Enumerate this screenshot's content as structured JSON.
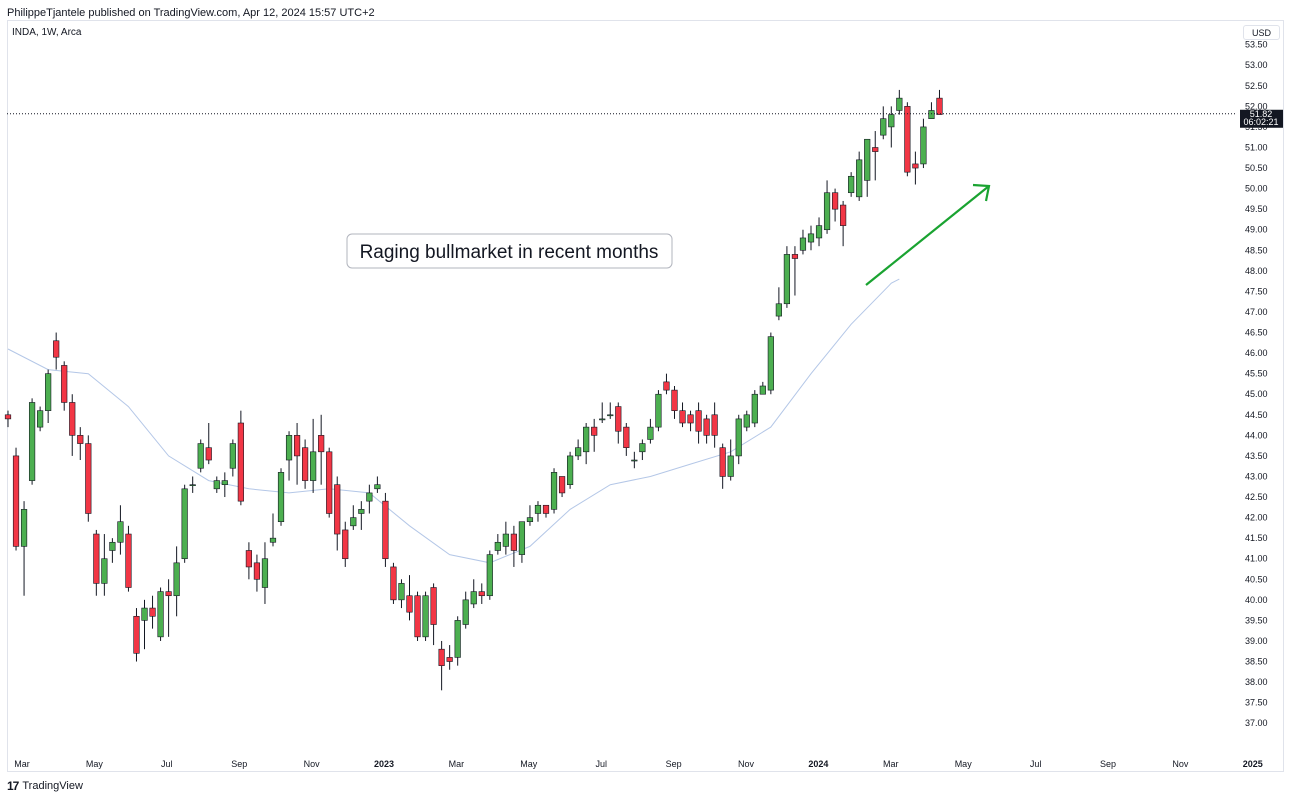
{
  "header": {
    "published_by": "PhilippeTjantele published on TradingView.com, Apr 12, 2024 15:57 UTC+2",
    "symbol": "INDA, 1W, Arca",
    "currency": "USD"
  },
  "footer": {
    "brand": "TradingView",
    "logo_glyph": "17"
  },
  "chart_data": {
    "type": "candlestick",
    "symbol": "INDA",
    "interval": "1W",
    "exchange": "Arca",
    "y_ticks": [
      "37.00",
      "37.50",
      "38.00",
      "38.50",
      "39.00",
      "39.50",
      "40.00",
      "40.50",
      "41.00",
      "41.50",
      "42.00",
      "42.50",
      "43.00",
      "43.50",
      "44.00",
      "44.50",
      "45.00",
      "45.50",
      "46.00",
      "46.50",
      "47.00",
      "47.50",
      "48.00",
      "48.50",
      "49.00",
      "49.50",
      "50.00",
      "50.50",
      "51.00",
      "51.50",
      "52.00",
      "52.50",
      "53.00",
      "53.50"
    ],
    "ylim": [
      36.3,
      54.1
    ],
    "x_ticks": [
      {
        "label": "Mar",
        "bold": false
      },
      {
        "label": "May",
        "bold": false
      },
      {
        "label": "Jul",
        "bold": false
      },
      {
        "label": "Sep",
        "bold": false
      },
      {
        "label": "Nov",
        "bold": false
      },
      {
        "label": "2023",
        "bold": true
      },
      {
        "label": "Mar",
        "bold": false
      },
      {
        "label": "May",
        "bold": false
      },
      {
        "label": "Jul",
        "bold": false
      },
      {
        "label": "Sep",
        "bold": false
      },
      {
        "label": "Nov",
        "bold": false
      },
      {
        "label": "2024",
        "bold": true
      },
      {
        "label": "Mar",
        "bold": false
      },
      {
        "label": "May",
        "bold": false
      },
      {
        "label": "Jul",
        "bold": false
      },
      {
        "label": "Sep",
        "bold": false
      },
      {
        "label": "Nov",
        "bold": false
      },
      {
        "label": "2025",
        "bold": true
      }
    ],
    "last_price": {
      "value": "51.82",
      "countdown": "06:02:21"
    },
    "candles": [
      [
        44.5,
        44.4,
        44.6,
        44.2
      ],
      [
        43.5,
        41.3,
        43.7,
        41.2
      ],
      [
        41.3,
        42.2,
        42.4,
        40.1
      ],
      [
        42.9,
        44.8,
        44.9,
        42.8
      ],
      [
        44.2,
        44.6,
        44.7,
        44.1
      ],
      [
        44.6,
        45.5,
        45.6,
        44.3
      ],
      [
        46.3,
        45.9,
        46.5,
        45.6
      ],
      [
        45.7,
        44.8,
        45.8,
        44.6
      ],
      [
        44.8,
        44.0,
        45.0,
        43.5
      ],
      [
        44.0,
        43.8,
        44.2,
        43.4
      ],
      [
        43.8,
        42.1,
        44.0,
        41.9
      ],
      [
        41.6,
        40.4,
        41.7,
        40.1
      ],
      [
        40.4,
        41.0,
        41.6,
        40.1
      ],
      [
        41.2,
        41.4,
        41.5,
        40.9
      ],
      [
        41.4,
        41.9,
        42.3,
        41.1
      ],
      [
        41.6,
        40.3,
        41.8,
        40.2
      ],
      [
        39.6,
        38.7,
        39.8,
        38.5
      ],
      [
        39.5,
        39.8,
        40.0,
        38.8
      ],
      [
        39.8,
        39.6,
        40.1,
        39.3
      ],
      [
        39.1,
        40.2,
        40.3,
        39.0
      ],
      [
        40.2,
        40.1,
        40.5,
        39.1
      ],
      [
        40.1,
        40.9,
        41.3,
        39.6
      ],
      [
        41.0,
        42.7,
        42.8,
        40.9
      ],
      [
        42.8,
        42.8,
        43.0,
        42.6
      ],
      [
        43.2,
        43.8,
        43.9,
        43.1
      ],
      [
        43.7,
        43.4,
        44.3,
        43.3
      ],
      [
        42.7,
        42.9,
        43.0,
        42.6
      ],
      [
        42.8,
        42.9,
        43.1,
        42.5
      ],
      [
        43.2,
        43.8,
        43.9,
        43.0
      ],
      [
        44.3,
        42.4,
        44.6,
        42.3
      ],
      [
        41.2,
        40.8,
        41.4,
        40.5
      ],
      [
        40.9,
        40.5,
        41.1,
        40.2
      ],
      [
        40.3,
        41.0,
        41.4,
        39.9
      ],
      [
        41.4,
        41.5,
        42.1,
        41.3
      ],
      [
        41.9,
        43.1,
        43.2,
        41.8
      ],
      [
        43.4,
        44.0,
        44.1,
        42.9
      ],
      [
        44.0,
        43.5,
        44.3,
        42.8
      ],
      [
        43.7,
        42.9,
        43.9,
        42.7
      ],
      [
        42.9,
        43.6,
        44.4,
        42.6
      ],
      [
        44.0,
        43.6,
        44.5,
        42.8
      ],
      [
        43.6,
        42.1,
        43.7,
        42.0
      ],
      [
        42.8,
        41.6,
        43.0,
        41.2
      ],
      [
        41.7,
        41.0,
        41.9,
        40.8
      ],
      [
        41.8,
        42.0,
        42.3,
        41.7
      ],
      [
        42.1,
        42.2,
        42.4,
        41.7
      ],
      [
        42.4,
        42.6,
        42.8,
        42.1
      ],
      [
        42.7,
        42.8,
        43.0,
        42.6
      ],
      [
        42.4,
        41.0,
        42.6,
        40.8
      ],
      [
        40.8,
        40.0,
        40.9,
        39.9
      ],
      [
        40.0,
        40.4,
        40.5,
        39.8
      ],
      [
        40.1,
        39.7,
        40.6,
        39.5
      ],
      [
        40.1,
        39.1,
        40.2,
        39.0
      ],
      [
        39.1,
        40.1,
        40.2,
        39.0
      ],
      [
        40.3,
        39.4,
        40.4,
        38.9
      ],
      [
        38.8,
        38.4,
        39.0,
        37.8
      ],
      [
        38.6,
        38.5,
        38.9,
        38.3
      ],
      [
        38.6,
        39.5,
        39.6,
        38.4
      ],
      [
        39.4,
        40.0,
        40.2,
        39.3
      ],
      [
        39.9,
        40.2,
        40.5,
        39.8
      ],
      [
        40.2,
        40.1,
        40.4,
        39.9
      ],
      [
        40.1,
        41.1,
        41.2,
        40.0
      ],
      [
        41.2,
        41.4,
        41.6,
        41.1
      ],
      [
        41.3,
        41.6,
        41.9,
        41.1
      ],
      [
        41.6,
        41.2,
        41.8,
        40.8
      ],
      [
        41.1,
        41.9,
        41.9,
        40.9
      ],
      [
        41.9,
        42.0,
        42.3,
        41.8
      ],
      [
        42.1,
        42.3,
        42.4,
        41.9
      ],
      [
        42.3,
        42.1,
        42.2,
        42.0
      ],
      [
        42.2,
        43.1,
        43.2,
        42.1
      ],
      [
        43.0,
        42.6,
        43.0,
        42.5
      ],
      [
        42.8,
        43.5,
        43.6,
        42.7
      ],
      [
        43.5,
        43.7,
        43.9,
        43.4
      ],
      [
        43.6,
        44.2,
        44.3,
        43.3
      ],
      [
        44.2,
        44.0,
        44.4,
        43.6
      ],
      [
        44.4,
        44.4,
        44.8,
        44.3
      ],
      [
        44.5,
        44.5,
        44.8,
        44.4
      ],
      [
        44.7,
        44.1,
        44.8,
        43.8
      ],
      [
        44.2,
        43.7,
        44.3,
        43.5
      ],
      [
        43.4,
        43.4,
        43.6,
        43.2
      ],
      [
        43.6,
        43.8,
        43.9,
        43.4
      ],
      [
        43.9,
        44.2,
        44.4,
        43.8
      ],
      [
        44.2,
        45.0,
        45.1,
        44.1
      ],
      [
        45.3,
        45.1,
        45.5,
        45.0
      ],
      [
        45.1,
        44.6,
        45.2,
        44.4
      ],
      [
        44.6,
        44.3,
        44.8,
        44.2
      ],
      [
        44.5,
        44.3,
        44.6,
        44.1
      ],
      [
        44.6,
        44.1,
        44.8,
        43.8
      ],
      [
        44.4,
        44.0,
        44.5,
        43.8
      ],
      [
        44.5,
        44.0,
        44.8,
        43.7
      ],
      [
        43.7,
        43.0,
        43.8,
        42.7
      ],
      [
        43.0,
        43.5,
        43.9,
        42.9
      ],
      [
        43.5,
        44.4,
        44.5,
        43.3
      ],
      [
        44.2,
        44.5,
        44.6,
        44.1
      ],
      [
        44.3,
        45.0,
        45.1,
        44.2
      ],
      [
        45.0,
        45.2,
        45.3,
        45.0
      ],
      [
        45.1,
        46.4,
        46.5,
        45.0
      ],
      [
        46.9,
        47.2,
        47.6,
        46.8
      ],
      [
        47.2,
        48.4,
        48.6,
        47.1
      ],
      [
        48.4,
        48.3,
        48.6,
        47.4
      ],
      [
        48.5,
        48.8,
        49.0,
        48.4
      ],
      [
        48.7,
        48.9,
        49.1,
        48.5
      ],
      [
        48.8,
        49.1,
        49.3,
        48.6
      ],
      [
        49.0,
        49.9,
        50.2,
        48.9
      ],
      [
        49.9,
        49.5,
        50.0,
        49.2
      ],
      [
        49.6,
        49.1,
        49.7,
        48.6
      ],
      [
        49.9,
        50.3,
        50.4,
        49.8
      ],
      [
        49.8,
        50.7,
        50.9,
        49.7
      ],
      [
        50.2,
        51.2,
        51.2,
        49.8
      ],
      [
        51.0,
        50.9,
        51.4,
        50.2
      ],
      [
        51.3,
        51.7,
        52.0,
        51.2
      ],
      [
        51.5,
        51.8,
        52.0,
        51.0
      ],
      [
        51.9,
        52.2,
        52.4,
        51.8
      ],
      [
        52.0,
        50.4,
        52.1,
        50.3
      ],
      [
        50.6,
        50.5,
        50.9,
        50.1
      ],
      [
        50.6,
        51.5,
        51.7,
        50.5
      ],
      [
        51.7,
        51.9,
        52.1,
        51.7
      ],
      [
        52.2,
        51.8,
        52.4,
        51.8
      ]
    ],
    "sma": [
      [
        0,
        46.1
      ],
      [
        5,
        45.6
      ],
      [
        10,
        45.5
      ],
      [
        15,
        44.7
      ],
      [
        20,
        43.5
      ],
      [
        25,
        42.9
      ],
      [
        30,
        42.7
      ],
      [
        35,
        42.6
      ],
      [
        40,
        42.7
      ],
      [
        45,
        42.6
      ],
      [
        50,
        41.8
      ],
      [
        55,
        41.1
      ],
      [
        60,
        40.9
      ],
      [
        65,
        41.3
      ],
      [
        70,
        42.2
      ],
      [
        75,
        42.8
      ],
      [
        80,
        43.0
      ],
      [
        85,
        43.3
      ],
      [
        90,
        43.6
      ],
      [
        95,
        44.2
      ],
      [
        100,
        45.5
      ],
      [
        105,
        46.7
      ],
      [
        110,
        47.7
      ],
      [
        111,
        47.8
      ]
    ],
    "annotation": "Raging bullmarket in recent months",
    "colors": {
      "up": "#4caf50",
      "down": "#f23645",
      "wick": "#131722",
      "sma": "#b4c7e7",
      "arrow": "#1aa331"
    }
  }
}
